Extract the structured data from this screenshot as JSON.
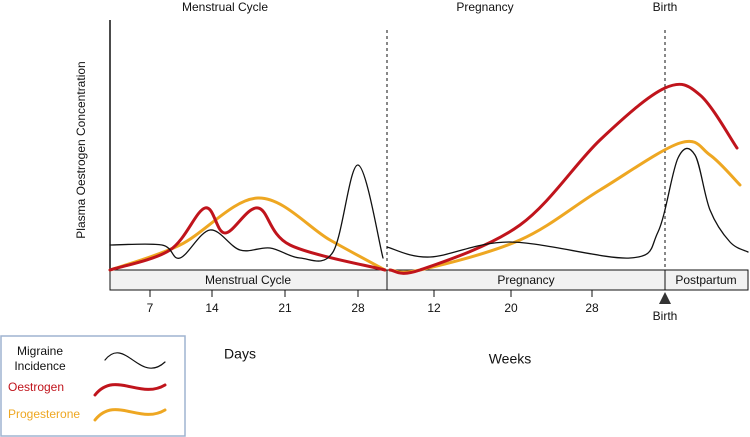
{
  "top_labels": {
    "menstrual": "Menstrual Cycle",
    "pregnancy": "Pregnancy",
    "birth": "Birth"
  },
  "y_axis_label": "Plasma Oestrogen Concentration",
  "phases": [
    "Menstrual Cycle",
    "Pregnancy",
    "Postpartum"
  ],
  "day_ticks": [
    "7",
    "14",
    "21",
    "28"
  ],
  "week_ticks": [
    "12",
    "20",
    "28"
  ],
  "birth_marker": "Birth",
  "unit_labels": {
    "days": "Days",
    "weeks": "Weeks"
  },
  "legend": [
    "Migraine Incidence",
    "Oestrogen",
    "Progesterone"
  ]
}
